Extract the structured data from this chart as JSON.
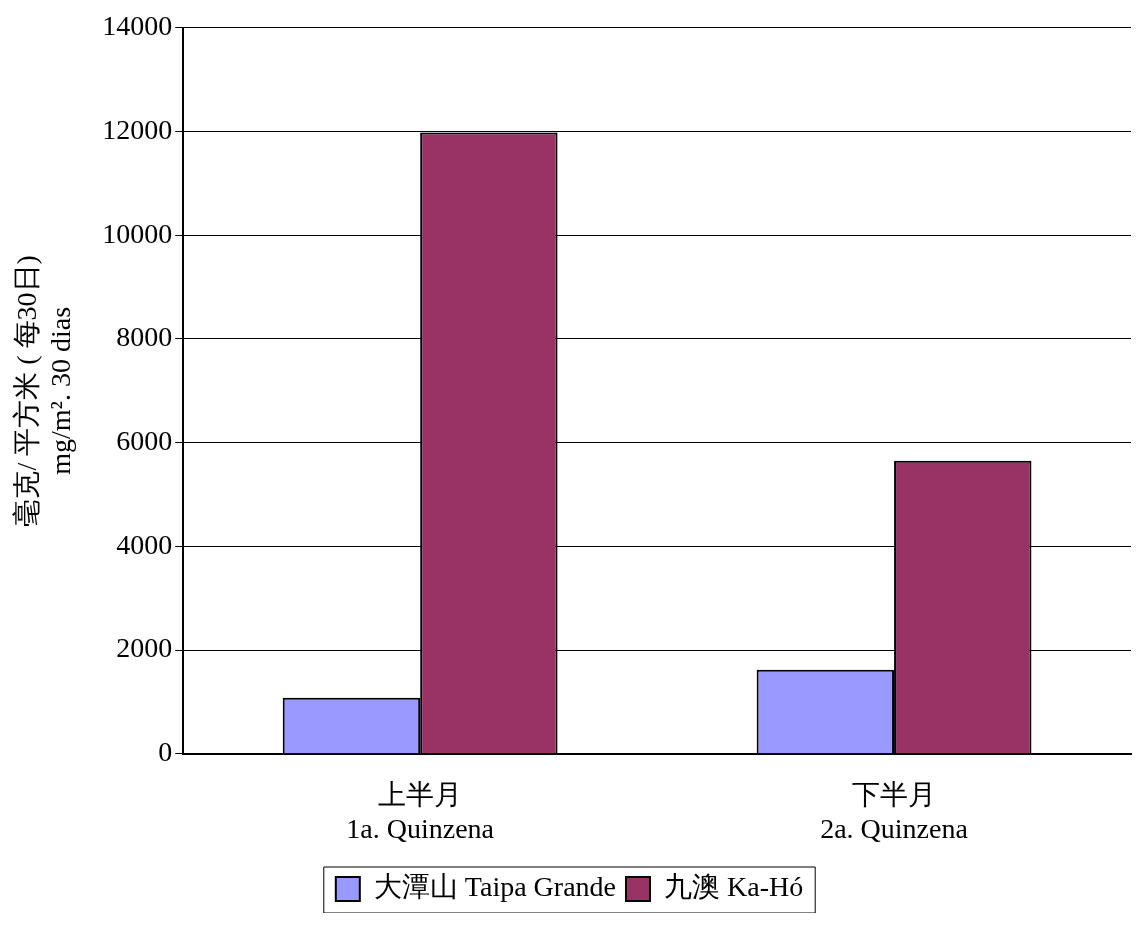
{
  "chart_data": {
    "type": "bar",
    "ylabel": "毫克/ 平方米 ( 每30日)\nmg/m². 30 dias",
    "categories": [
      "上半月\n1a. Quinzena",
      "下半月\n2a. Quinzena"
    ],
    "series": [
      {
        "name": "大潭山 Taipa Grande",
        "color": "#9999ff",
        "values": [
          1080,
          1620
        ]
      },
      {
        "name": "九澳 Ka-Hó",
        "color": "#993366",
        "values": [
          11980,
          5650
        ]
      }
    ],
    "ylim": [
      0,
      14000
    ],
    "yticks": [
      0,
      2000,
      4000,
      6000,
      8000,
      10000,
      12000,
      14000
    ],
    "grid": "y",
    "legend": "bottom"
  }
}
